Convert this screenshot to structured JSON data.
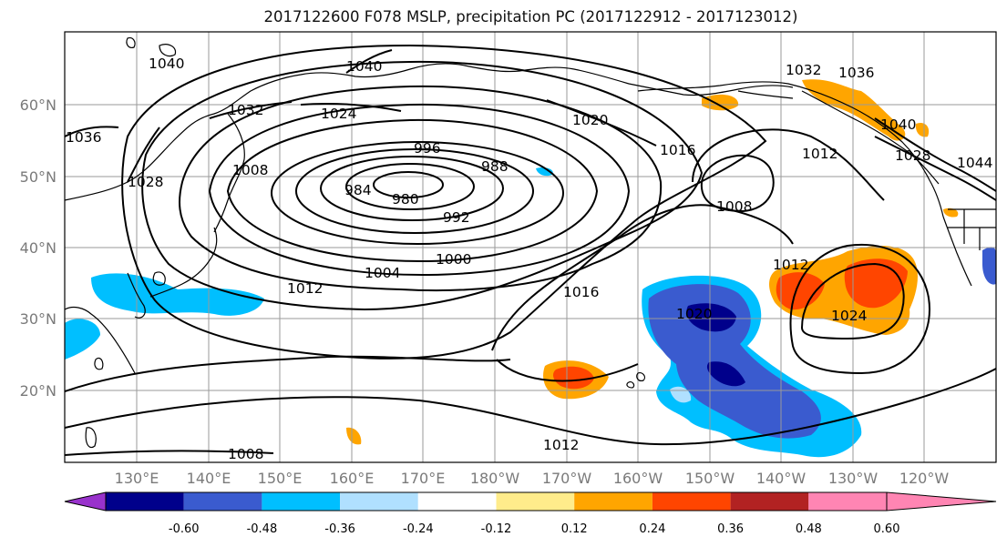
{
  "title": "2017122600 F078 MSLP, precipitation PC (2017122912 - 2017123012)",
  "lat_labels": [
    "60°N",
    "50°N",
    "40°N",
    "30°N",
    "20°N"
  ],
  "lon_labels": [
    "130°E",
    "140°E",
    "150°E",
    "160°E",
    "170°E",
    "180°W",
    "170°W",
    "160°W",
    "150°W",
    "140°W",
    "130°W",
    "120°W"
  ],
  "isobar_labels": [
    "1040",
    "1040",
    "1036",
    "1032",
    "1024",
    "1020",
    "1016",
    "1012",
    "1028",
    "1008",
    "996",
    "988",
    "984",
    "980",
    "992",
    "1008",
    "1000",
    "1004",
    "1012",
    "1016",
    "1012",
    "1020",
    "1024",
    "1012",
    "1008",
    "1036",
    "1032",
    "1040",
    "1028",
    "1044"
  ],
  "colorbar": {
    "ticks": [
      "-0.60",
      "-0.48",
      "-0.36",
      "-0.24",
      "-0.12",
      "0.12",
      "0.24",
      "0.36",
      "0.48",
      "0.60"
    ],
    "colors": {
      "under": "#9932CC",
      "bins": [
        "#00008B",
        "#3A5BCF",
        "#00BFFF",
        "#B0E0FF",
        "#FFFFFF",
        "#FFEC8B",
        "#FFA500",
        "#FF4500",
        "#B22222"
      ],
      "over": "#FF85B3"
    }
  },
  "colors": {
    "land_outline": "#000000",
    "grid": "#9a9a9a",
    "label_gray": "#7a7a7a"
  }
}
